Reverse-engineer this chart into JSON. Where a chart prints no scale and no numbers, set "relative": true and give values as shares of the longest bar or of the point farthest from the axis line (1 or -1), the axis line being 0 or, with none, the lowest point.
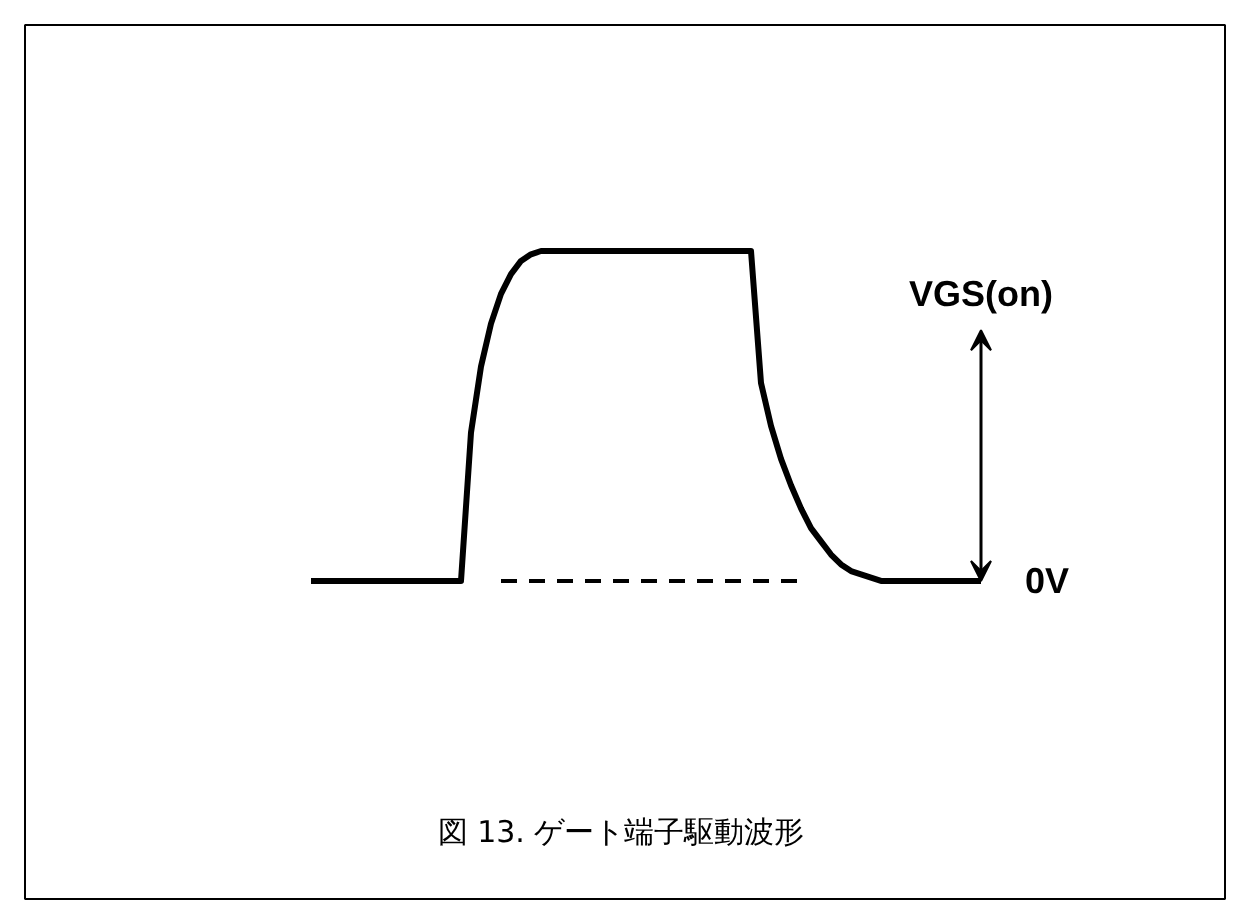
{
  "chart_data": {
    "type": "line",
    "relative": true,
    "categories": [
      null,
      null,
      null,
      null,
      null,
      null,
      null,
      null,
      null,
      null,
      null,
      null,
      null,
      null,
      null,
      null,
      null,
      null,
      null,
      null,
      null,
      null,
      null,
      null,
      null,
      null,
      null,
      null,
      null,
      null,
      null,
      null,
      null,
      null,
      null,
      null,
      null,
      null,
      null,
      null,
      null,
      null,
      null,
      null,
      null,
      null,
      null,
      null,
      null,
      null,
      null,
      null,
      null,
      null,
      null,
      null,
      null,
      null,
      null,
      null,
      null,
      null,
      null,
      null,
      null,
      null,
      null,
      null
    ],
    "series": [
      {
        "color": "#000000",
        "values": [
          0,
          0,
          0,
          0,
          0,
          0,
          0,
          0,
          0,
          0,
          0,
          0,
          0,
          0,
          0,
          0,
          0.45,
          0.65,
          0.78,
          0.87,
          0.93,
          0.97,
          0.99,
          1,
          1,
          1,
          1,
          1,
          1,
          1,
          1,
          1,
          1,
          1,
          1,
          1,
          1,
          1,
          1,
          1,
          1,
          1,
          1,
          1,
          1,
          0.6,
          0.47,
          0.37,
          0.29,
          0.22,
          0.16,
          0.12,
          0.08,
          0.05,
          0.03,
          0.02,
          0.01,
          0,
          0,
          0,
          0,
          0,
          0,
          0,
          0,
          0,
          0,
          0
        ]
      },
      {
        "color": "#000000",
        "line_style": "dashed",
        "values": [
          null,
          null,
          null,
          null,
          null,
          null,
          null,
          null,
          null,
          null,
          null,
          null,
          null,
          null,
          null,
          null,
          null,
          null,
          null,
          0,
          0,
          0,
          0,
          0,
          0,
          0,
          0,
          0,
          0,
          0,
          0,
          0,
          0,
          0,
          0,
          0,
          0,
          0,
          0,
          0,
          0,
          0,
          0,
          0,
          0,
          0,
          0,
          0,
          0,
          0,
          null,
          null,
          null,
          null,
          null,
          null,
          null,
          null,
          null,
          null,
          null,
          null,
          null,
          null,
          null,
          null,
          null,
          null
        ]
      }
    ],
    "annotations": [
      "VGS(on)",
      "0V",
      "図 13. ゲート端子駆動波形"
    ]
  }
}
